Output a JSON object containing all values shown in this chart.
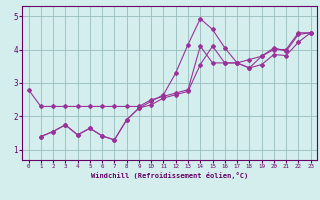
{
  "xlabel": "Windchill (Refroidissement éolien,°C)",
  "bg_color": "#d4eeee",
  "line_color": "#993399",
  "grid_color": "#99bbbb",
  "axis_color": "#660066",
  "text_color": "#660066",
  "xlim": [
    -0.5,
    23.5
  ],
  "ylim": [
    0.7,
    5.3
  ],
  "xticks": [
    0,
    1,
    2,
    3,
    4,
    5,
    6,
    7,
    8,
    9,
    10,
    11,
    12,
    13,
    14,
    15,
    16,
    17,
    18,
    19,
    20,
    21,
    22,
    23
  ],
  "yticks": [
    1,
    2,
    3,
    4,
    5
  ],
  "line1_x": [
    0,
    1,
    2,
    3,
    4,
    5,
    6,
    7,
    8,
    9,
    10,
    11,
    12,
    13,
    14,
    15,
    16,
    17,
    18,
    19,
    20,
    21,
    22,
    23
  ],
  "line1_y": [
    2.8,
    2.3,
    2.3,
    2.3,
    2.3,
    2.3,
    2.3,
    2.3,
    2.3,
    2.3,
    2.5,
    2.6,
    2.7,
    2.8,
    4.1,
    3.6,
    3.6,
    3.6,
    3.7,
    3.8,
    4.0,
    4.0,
    4.5,
    4.5
  ],
  "line2_x": [
    1,
    2,
    3,
    4,
    5,
    6,
    7,
    8,
    9,
    10,
    11,
    12,
    13,
    14,
    15,
    16,
    17,
    18,
    19,
    20,
    21,
    22,
    23
  ],
  "line2_y": [
    1.4,
    1.55,
    1.75,
    1.45,
    1.65,
    1.42,
    1.3,
    1.9,
    2.25,
    2.45,
    2.65,
    3.3,
    4.15,
    4.92,
    4.6,
    4.05,
    3.6,
    3.45,
    3.8,
    4.05,
    3.95,
    4.45,
    4.5
  ],
  "line3_x": [
    1,
    2,
    3,
    4,
    5,
    6,
    7,
    8,
    9,
    10,
    11,
    12,
    13,
    14,
    15,
    16,
    17,
    18,
    19,
    20,
    21,
    22,
    23
  ],
  "line3_y": [
    1.4,
    1.55,
    1.75,
    1.45,
    1.65,
    1.42,
    1.3,
    1.9,
    2.25,
    2.35,
    2.55,
    2.65,
    2.75,
    3.55,
    4.1,
    3.6,
    3.6,
    3.45,
    3.55,
    3.85,
    3.82,
    4.22,
    4.5
  ]
}
